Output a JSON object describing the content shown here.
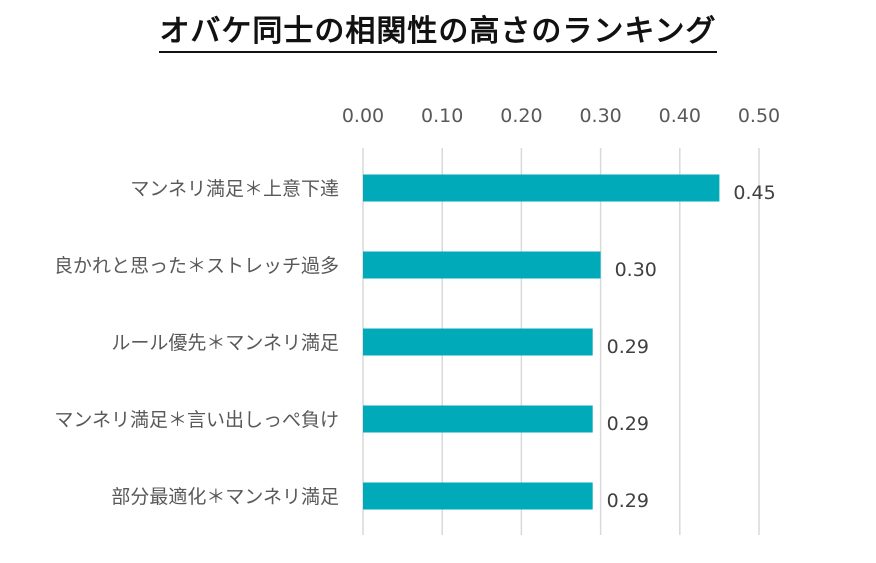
{
  "title": "オバケ同士の相関性の高さのランキング",
  "colors": {
    "bar": "#00aab8",
    "grid": "#d9d9d9",
    "text": "#595959"
  },
  "chart_data": {
    "type": "bar",
    "orientation": "horizontal",
    "title": "オバケ同士の相関性の高さのランキング",
    "categories": [
      "マンネリ満足＊上意下達",
      "良かれと思った＊ストレッチ過多",
      "ルール優先＊マンネリ満足",
      "マンネリ満足＊言い出しっぺ負け",
      "部分最適化＊マンネリ満足"
    ],
    "values": [
      0.45,
      0.3,
      0.29,
      0.29,
      0.29
    ],
    "data_labels": [
      "0.45",
      "0.30",
      "0.29",
      "0.29",
      "0.29"
    ],
    "xlim": [
      0,
      0.5
    ],
    "ticks": [
      0,
      0.1,
      0.2,
      0.3,
      0.4,
      0.5
    ],
    "tick_labels": [
      "0.00",
      "0.10",
      "0.20",
      "0.30",
      "0.40",
      "0.50"
    ],
    "axis_position": "top",
    "grid": true,
    "xlabel": "",
    "ylabel": ""
  }
}
